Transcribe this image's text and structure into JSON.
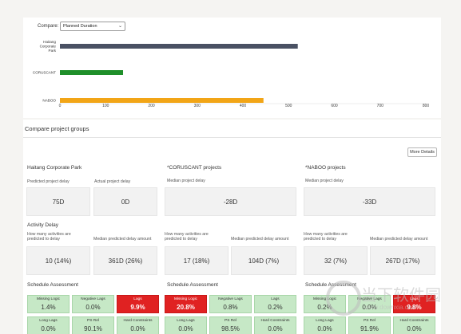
{
  "compare": {
    "label": "Compare:",
    "selected": "Planned Duration"
  },
  "chart_data": {
    "type": "bar",
    "orientation": "horizontal",
    "categories": [
      "Haitang Corporate Park",
      "CORUSCANT",
      "NABOO"
    ],
    "category_labels": [
      [
        "Haitang",
        "Corporate",
        "Park"
      ],
      [
        "CORUSCANT"
      ],
      [
        "NABOO"
      ]
    ],
    "values": [
      520,
      138,
      445
    ],
    "colors": [
      "#4a5163",
      "#1f8f2a",
      "#f2a516"
    ],
    "xlim": [
      0,
      800
    ],
    "xticks": [
      "0",
      "100",
      "200",
      "300",
      "400",
      "500",
      "600",
      "700",
      "800"
    ],
    "title": "",
    "xlabel": "",
    "ylabel": "",
    "grid": false
  },
  "groups": {
    "title": "Compare project groups",
    "more_details": "More Details",
    "haitang": {
      "name": "Haitang Corporate Park",
      "predicted_delay_label": "Predicted project delay",
      "predicted_delay_value": "75D",
      "actual_delay_label": "Actual project delay",
      "actual_delay_value": "0D"
    },
    "coruscant": {
      "name": "*CORUSCANT projects",
      "median_delay_label": "Median project delay",
      "median_delay_value": "-28D"
    },
    "naboo": {
      "name": "*NABOO projects",
      "median_delay_label": "Median project delay",
      "median_delay_value": "-33D"
    },
    "activity_delay_title": "Activity Delay",
    "activity": {
      "predicted_label": "How many activities are predicted to delay",
      "median_label": "Median predicted delay amount",
      "haitang": {
        "predicted": "10 (14%)",
        "median": "361D (26%)"
      },
      "coruscant": {
        "predicted": "17 (18%)",
        "median": "104D (7%)"
      },
      "naboo": {
        "predicted": "32 (7%)",
        "median": "267D (17%)"
      }
    },
    "schedule": {
      "title": "Schedule Assessment",
      "labels": {
        "missing": "Missing Logic",
        "negative": "Negative Lags",
        "lags": "Lags",
        "long": "Long Lags",
        "ps": "PS Rel",
        "hard": "Hard Constraints"
      },
      "haitang": {
        "missing": "1.4%",
        "negative": "0.0%",
        "lags": "9.9%",
        "long": "0.0%",
        "ps": "90.1%",
        "hard": "0.0%"
      },
      "coruscant": {
        "missing": "20.8%",
        "negative": "0.8%",
        "lags": "0.2%",
        "long": "0.0%",
        "ps": "98.5%",
        "hard": "0.0%"
      },
      "naboo": {
        "missing": "0.2%",
        "negative": "0.0%",
        "lags": "9.8%",
        "long": "0.0%",
        "ps": "91.9%",
        "hard": "0.0%"
      }
    }
  },
  "watermark": {
    "text": "当下软件园",
    "url": "www.downxia.com"
  }
}
